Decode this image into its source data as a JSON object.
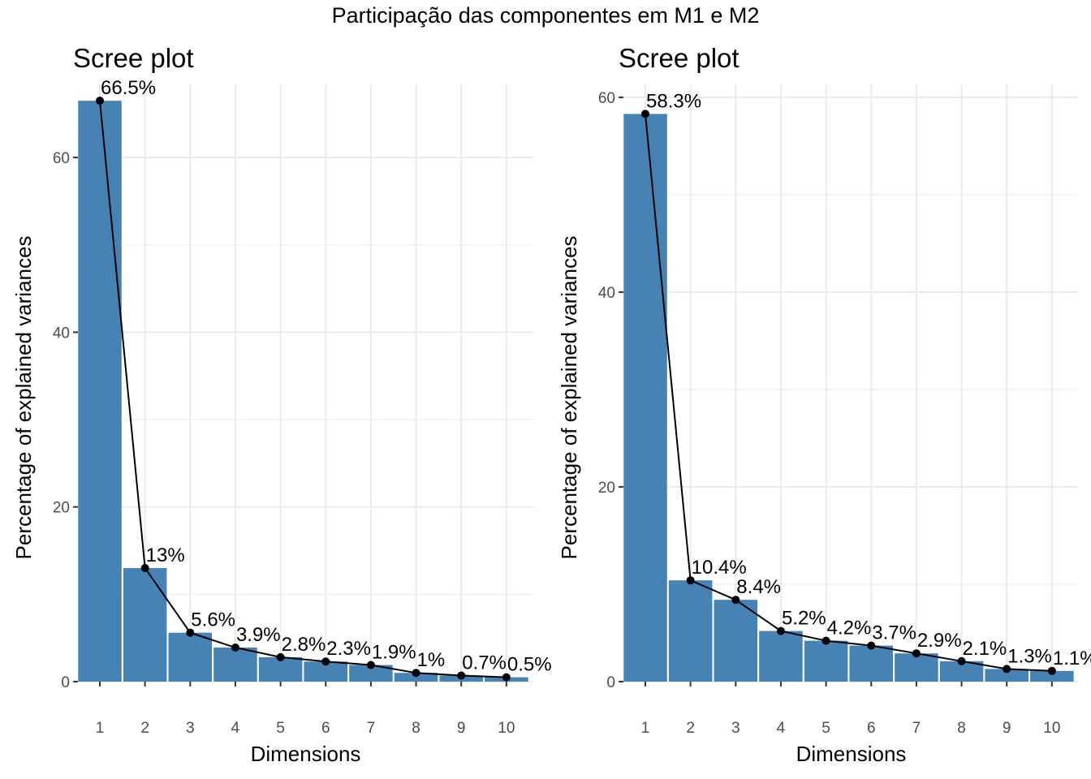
{
  "title": "Participação das componentes em M1 e M2",
  "colors": {
    "bar": "#4682B4",
    "line": "#000000",
    "grid": "#ebebeb"
  },
  "chart_data": [
    {
      "type": "bar",
      "title": "Scree plot",
      "xlabel": "Dimensions",
      "ylabel": "Percentage of explained variances",
      "categories": [
        "1",
        "2",
        "3",
        "4",
        "5",
        "6",
        "7",
        "8",
        "9",
        "10"
      ],
      "values": [
        66.5,
        13.0,
        5.6,
        3.9,
        2.8,
        2.3,
        1.9,
        1.0,
        0.7,
        0.5
      ],
      "labels": [
        "66.5%",
        "13%",
        "5.6%",
        "3.9%",
        "2.8%",
        "2.3%",
        "1.9%",
        "1%",
        "0.7%",
        "0.5%"
      ],
      "ylim": [
        0,
        68
      ],
      "yticks": [
        0,
        20,
        40,
        60
      ],
      "line_overlay": true,
      "grid": true
    },
    {
      "type": "bar",
      "title": "Scree plot",
      "xlabel": "Dimensions",
      "ylabel": "Percentage of explained variances",
      "categories": [
        "1",
        "2",
        "3",
        "4",
        "5",
        "6",
        "7",
        "8",
        "9",
        "10"
      ],
      "values": [
        58.3,
        10.4,
        8.4,
        5.2,
        4.2,
        3.7,
        2.9,
        2.1,
        1.3,
        1.1
      ],
      "labels": [
        "58.3%",
        "10.4%",
        "8.4%",
        "5.2%",
        "4.2%",
        "3.7%",
        "2.9%",
        "2.1%",
        "1.3%",
        "1.1%"
      ],
      "ylim": [
        0,
        61
      ],
      "yticks": [
        0,
        20,
        40,
        60
      ],
      "line_overlay": true,
      "grid": true
    }
  ]
}
